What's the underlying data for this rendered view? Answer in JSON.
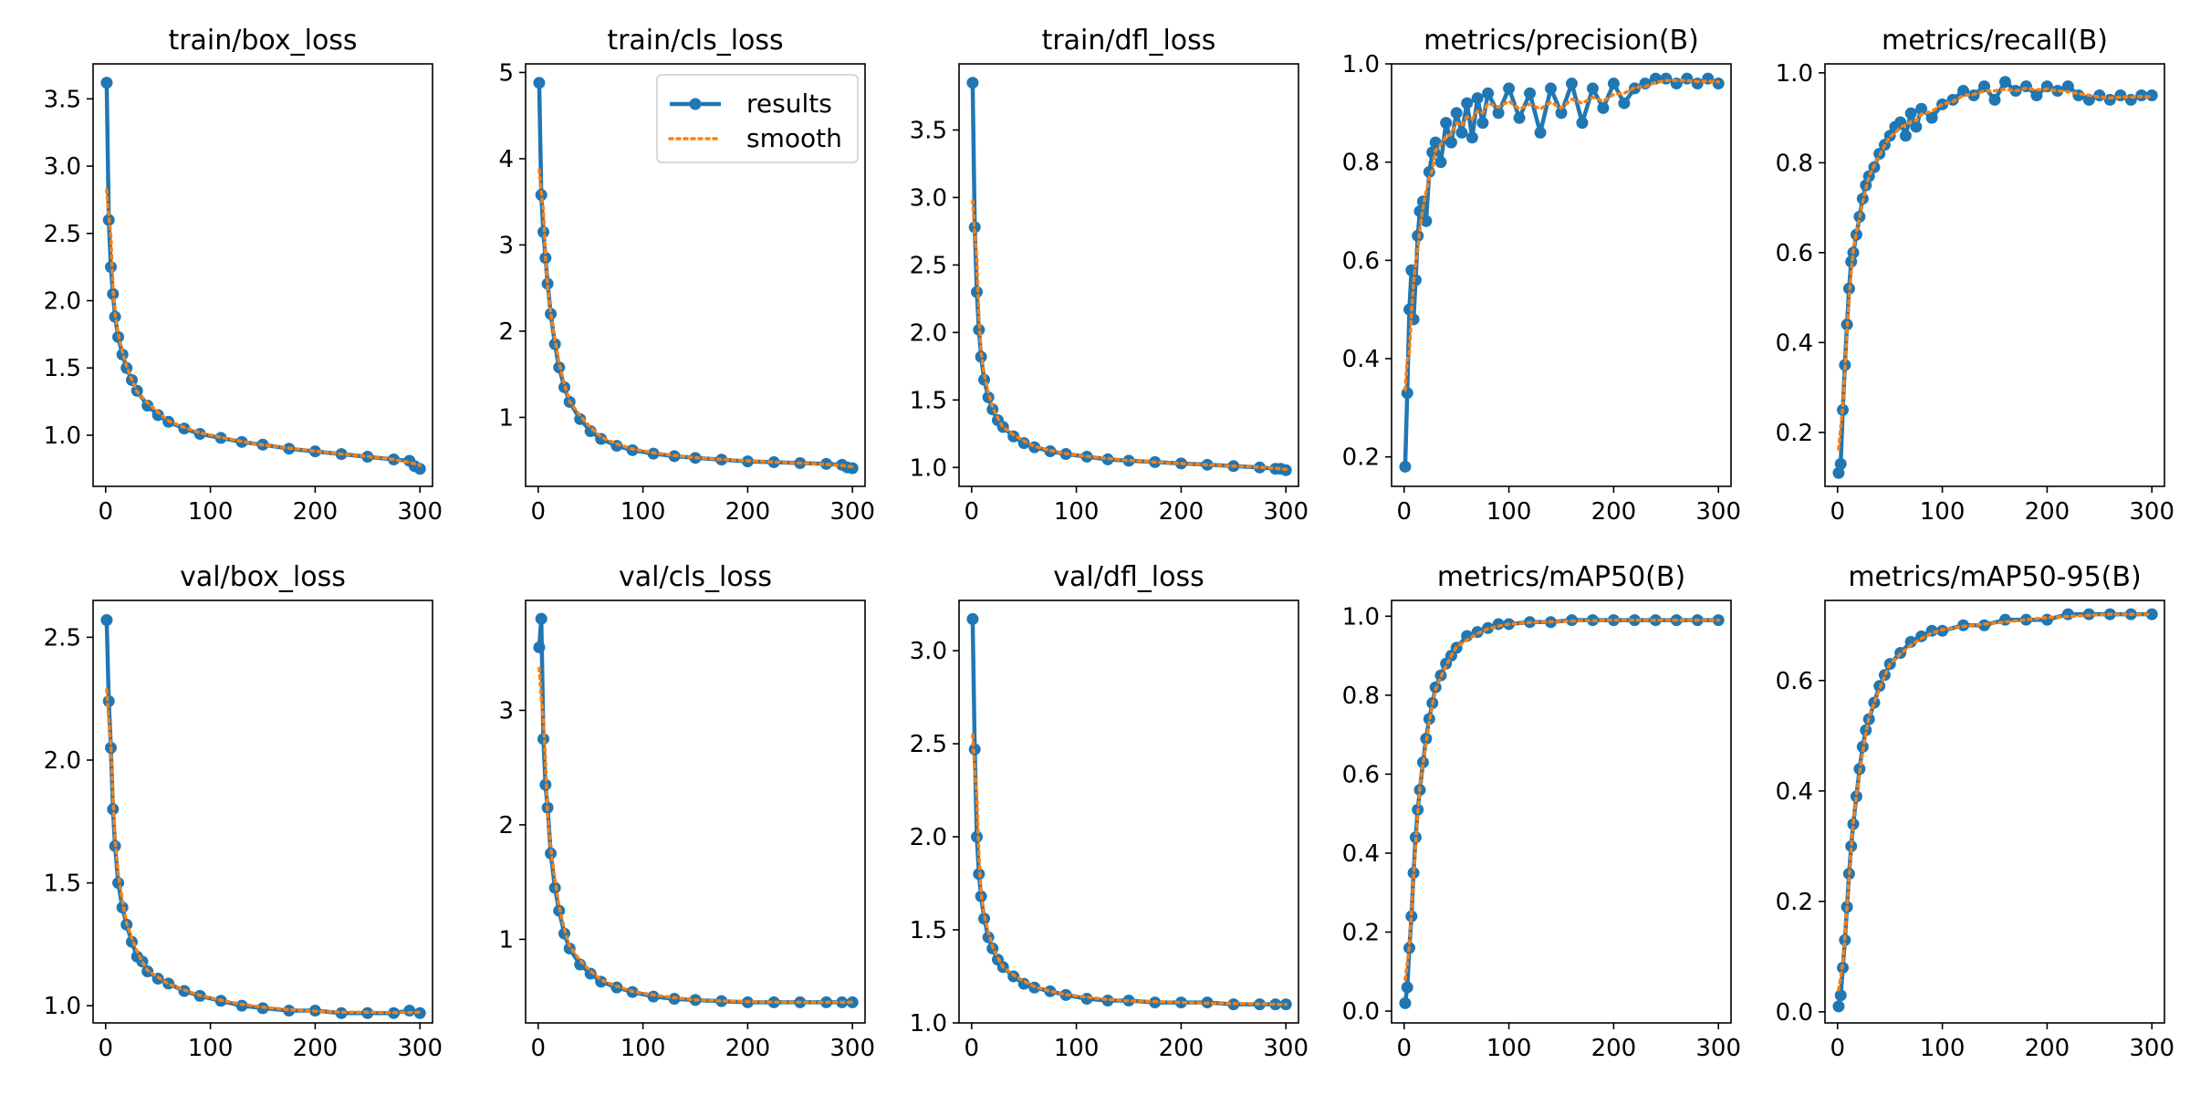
{
  "figure": {
    "legend": {
      "entries": [
        "results",
        "smooth"
      ],
      "placement": "upper-right",
      "panel_index": 1
    },
    "colors": {
      "results": "#1f77b4",
      "smooth": "#ff7f0e",
      "axes": "#000000",
      "background": "#ffffff"
    }
  },
  "chart_data": [
    {
      "type": "line",
      "title": "train/box_loss",
      "xlim": [
        -12,
        312
      ],
      "ylim": [
        0.62,
        3.76
      ],
      "xticks": [
        0,
        100,
        200,
        300
      ],
      "xtick_labels": [
        "0",
        "100",
        "200",
        "300"
      ],
      "yticks": [
        1.0,
        1.5,
        2.0,
        2.5,
        3.0,
        3.5
      ],
      "ytick_labels": [
        "1.0",
        "1.5",
        "2.0",
        "2.5",
        "3.0",
        "3.5"
      ],
      "series": [
        {
          "name": "results",
          "x": [
            1,
            3,
            5,
            7,
            9,
            12,
            16,
            20,
            25,
            30,
            40,
            50,
            60,
            75,
            90,
            110,
            130,
            150,
            175,
            200,
            225,
            250,
            275,
            290,
            295,
            300
          ],
          "y": [
            3.62,
            2.6,
            2.25,
            2.05,
            1.88,
            1.73,
            1.6,
            1.5,
            1.41,
            1.33,
            1.22,
            1.15,
            1.1,
            1.05,
            1.01,
            0.98,
            0.95,
            0.93,
            0.9,
            0.88,
            0.86,
            0.84,
            0.82,
            0.81,
            0.77,
            0.75
          ]
        }
      ]
    },
    {
      "type": "line",
      "title": "train/cls_loss",
      "xlim": [
        -12,
        312
      ],
      "ylim": [
        0.2,
        5.1
      ],
      "xticks": [
        0,
        100,
        200,
        300
      ],
      "xtick_labels": [
        "0",
        "100",
        "200",
        "300"
      ],
      "yticks": [
        1,
        2,
        3,
        4,
        5
      ],
      "ytick_labels": [
        "1",
        "2",
        "3",
        "4",
        "5"
      ],
      "series": [
        {
          "name": "results",
          "x": [
            1,
            3,
            5,
            7,
            9,
            12,
            16,
            20,
            25,
            30,
            40,
            50,
            60,
            75,
            90,
            110,
            130,
            150,
            175,
            200,
            225,
            250,
            275,
            290,
            295,
            300
          ],
          "y": [
            4.88,
            3.58,
            3.15,
            2.85,
            2.55,
            2.2,
            1.85,
            1.58,
            1.35,
            1.18,
            0.98,
            0.84,
            0.75,
            0.67,
            0.62,
            0.58,
            0.55,
            0.53,
            0.51,
            0.49,
            0.48,
            0.47,
            0.46,
            0.45,
            0.42,
            0.41
          ]
        }
      ]
    },
    {
      "type": "line",
      "title": "train/dfl_loss",
      "xlim": [
        -12,
        312
      ],
      "ylim": [
        0.86,
        3.99
      ],
      "xticks": [
        0,
        100,
        200,
        300
      ],
      "xtick_labels": [
        "0",
        "100",
        "200",
        "300"
      ],
      "yticks": [
        1.0,
        1.5,
        2.0,
        2.5,
        3.0,
        3.5
      ],
      "ytick_labels": [
        "1.0",
        "1.5",
        "2.0",
        "2.5",
        "3.0",
        "3.5"
      ],
      "series": [
        {
          "name": "results",
          "x": [
            1,
            3,
            5,
            7,
            9,
            12,
            16,
            20,
            25,
            30,
            40,
            50,
            60,
            75,
            90,
            110,
            130,
            150,
            175,
            200,
            225,
            250,
            275,
            290,
            295,
            300
          ],
          "y": [
            3.85,
            2.78,
            2.3,
            2.02,
            1.82,
            1.65,
            1.52,
            1.43,
            1.35,
            1.3,
            1.23,
            1.18,
            1.15,
            1.12,
            1.1,
            1.08,
            1.06,
            1.05,
            1.04,
            1.03,
            1.02,
            1.01,
            1.0,
            0.99,
            0.99,
            0.98
          ]
        }
      ]
    },
    {
      "type": "line",
      "title": "metrics/precision(B)",
      "xlim": [
        -12,
        312
      ],
      "ylim": [
        0.14,
        1.0
      ],
      "xticks": [
        0,
        100,
        200,
        300
      ],
      "xtick_labels": [
        "0",
        "100",
        "200",
        "300"
      ],
      "yticks": [
        0.2,
        0.4,
        0.6,
        0.8,
        1.0
      ],
      "ytick_labels": [
        "0.2",
        "0.4",
        "0.6",
        "0.8",
        "1.0"
      ],
      "series": [
        {
          "name": "results",
          "x": [
            1,
            3,
            5,
            7,
            9,
            11,
            13,
            15,
            18,
            21,
            24,
            27,
            30,
            35,
            40,
            45,
            50,
            55,
            60,
            65,
            70,
            75,
            80,
            90,
            100,
            110,
            120,
            130,
            140,
            150,
            160,
            170,
            180,
            190,
            200,
            210,
            220,
            230,
            240,
            250,
            260,
            270,
            280,
            290,
            300
          ],
          "y": [
            0.18,
            0.33,
            0.5,
            0.58,
            0.48,
            0.56,
            0.65,
            0.7,
            0.72,
            0.68,
            0.78,
            0.82,
            0.84,
            0.8,
            0.88,
            0.84,
            0.9,
            0.86,
            0.92,
            0.85,
            0.93,
            0.88,
            0.94,
            0.9,
            0.95,
            0.89,
            0.94,
            0.86,
            0.95,
            0.9,
            0.96,
            0.88,
            0.95,
            0.91,
            0.96,
            0.92,
            0.95,
            0.96,
            0.97,
            0.97,
            0.96,
            0.97,
            0.96,
            0.97,
            0.96
          ]
        }
      ]
    },
    {
      "type": "line",
      "title": "metrics/recall(B)",
      "xlim": [
        -12,
        312
      ],
      "ylim": [
        0.08,
        1.02
      ],
      "xticks": [
        0,
        100,
        200,
        300
      ],
      "xtick_labels": [
        "0",
        "100",
        "200",
        "300"
      ],
      "yticks": [
        0.2,
        0.4,
        0.6,
        0.8,
        1.0
      ],
      "ytick_labels": [
        "0.2",
        "0.4",
        "0.6",
        "0.8",
        "1.0"
      ],
      "series": [
        {
          "name": "results",
          "x": [
            1,
            3,
            5,
            7,
            9,
            11,
            13,
            15,
            18,
            21,
            24,
            27,
            30,
            35,
            40,
            45,
            50,
            55,
            60,
            65,
            70,
            75,
            80,
            90,
            100,
            110,
            120,
            130,
            140,
            150,
            160,
            170,
            180,
            190,
            200,
            210,
            220,
            230,
            240,
            250,
            260,
            270,
            280,
            290,
            300
          ],
          "y": [
            0.11,
            0.13,
            0.25,
            0.35,
            0.44,
            0.52,
            0.58,
            0.6,
            0.64,
            0.68,
            0.72,
            0.75,
            0.77,
            0.79,
            0.82,
            0.84,
            0.86,
            0.88,
            0.89,
            0.86,
            0.91,
            0.88,
            0.92,
            0.9,
            0.93,
            0.94,
            0.96,
            0.95,
            0.97,
            0.94,
            0.98,
            0.96,
            0.97,
            0.95,
            0.97,
            0.96,
            0.97,
            0.95,
            0.94,
            0.95,
            0.94,
            0.95,
            0.94,
            0.95,
            0.95
          ]
        }
      ]
    },
    {
      "type": "line",
      "title": "val/box_loss",
      "xlim": [
        -12,
        312
      ],
      "ylim": [
        0.93,
        2.65
      ],
      "xticks": [
        0,
        100,
        200,
        300
      ],
      "xtick_labels": [
        "0",
        "100",
        "200",
        "300"
      ],
      "yticks": [
        1.0,
        1.5,
        2.0,
        2.5
      ],
      "ytick_labels": [
        "1.0",
        "1.5",
        "2.0",
        "2.5"
      ],
      "series": [
        {
          "name": "results",
          "x": [
            1,
            3,
            5,
            7,
            9,
            12,
            16,
            20,
            25,
            30,
            35,
            40,
            50,
            60,
            75,
            90,
            110,
            130,
            150,
            175,
            200,
            225,
            250,
            275,
            290,
            300
          ],
          "y": [
            2.57,
            2.24,
            2.05,
            1.8,
            1.65,
            1.5,
            1.4,
            1.33,
            1.26,
            1.2,
            1.18,
            1.14,
            1.11,
            1.09,
            1.06,
            1.04,
            1.02,
            1.0,
            0.99,
            0.98,
            0.98,
            0.97,
            0.97,
            0.97,
            0.98,
            0.97
          ]
        }
      ]
    },
    {
      "type": "line",
      "title": "val/cls_loss",
      "xlim": [
        -12,
        312
      ],
      "ylim": [
        0.27,
        3.96
      ],
      "xticks": [
        0,
        100,
        200,
        300
      ],
      "xtick_labels": [
        "0",
        "100",
        "200",
        "300"
      ],
      "yticks": [
        1,
        2,
        3
      ],
      "ytick_labels": [
        "1",
        "2",
        "3"
      ],
      "series": [
        {
          "name": "results",
          "x": [
            1,
            3,
            5,
            7,
            9,
            12,
            16,
            20,
            25,
            30,
            40,
            50,
            60,
            75,
            90,
            110,
            130,
            150,
            175,
            200,
            225,
            250,
            275,
            290,
            300
          ],
          "y": [
            3.55,
            3.8,
            2.75,
            2.35,
            2.15,
            1.75,
            1.45,
            1.25,
            1.05,
            0.92,
            0.78,
            0.7,
            0.63,
            0.58,
            0.54,
            0.5,
            0.48,
            0.47,
            0.46,
            0.45,
            0.45,
            0.45,
            0.45,
            0.45,
            0.45
          ]
        }
      ]
    },
    {
      "type": "line",
      "title": "val/dfl_loss",
      "xlim": [
        -12,
        312
      ],
      "ylim": [
        1.0,
        3.27
      ],
      "xticks": [
        0,
        100,
        200,
        300
      ],
      "xtick_labels": [
        "0",
        "100",
        "200",
        "300"
      ],
      "yticks": [
        1.0,
        1.5,
        2.0,
        2.5,
        3.0
      ],
      "ytick_labels": [
        "1.0",
        "1.5",
        "2.0",
        "2.5",
        "3.0"
      ],
      "series": [
        {
          "name": "results",
          "x": [
            1,
            3,
            5,
            7,
            9,
            12,
            16,
            20,
            25,
            30,
            40,
            50,
            60,
            75,
            90,
            110,
            130,
            150,
            175,
            200,
            225,
            250,
            275,
            290,
            300
          ],
          "y": [
            3.17,
            2.47,
            2.0,
            1.8,
            1.68,
            1.56,
            1.46,
            1.4,
            1.34,
            1.3,
            1.25,
            1.21,
            1.19,
            1.17,
            1.15,
            1.13,
            1.12,
            1.12,
            1.11,
            1.11,
            1.11,
            1.1,
            1.1,
            1.1,
            1.1
          ]
        }
      ]
    },
    {
      "type": "line",
      "title": "metrics/mAP50(B)",
      "xlim": [
        -12,
        312
      ],
      "ylim": [
        -0.03,
        1.04
      ],
      "xticks": [
        0,
        100,
        200,
        300
      ],
      "xtick_labels": [
        "0",
        "100",
        "200",
        "300"
      ],
      "yticks": [
        0.0,
        0.2,
        0.4,
        0.6,
        0.8,
        1.0
      ],
      "ytick_labels": [
        "0.0",
        "0.2",
        "0.4",
        "0.6",
        "0.8",
        "1.0"
      ],
      "series": [
        {
          "name": "results",
          "x": [
            1,
            3,
            5,
            7,
            9,
            11,
            13,
            15,
            18,
            21,
            24,
            27,
            30,
            35,
            40,
            45,
            50,
            60,
            70,
            80,
            90,
            100,
            120,
            140,
            160,
            180,
            200,
            220,
            240,
            260,
            280,
            300
          ],
          "y": [
            0.02,
            0.06,
            0.16,
            0.24,
            0.35,
            0.44,
            0.51,
            0.56,
            0.63,
            0.69,
            0.74,
            0.78,
            0.82,
            0.85,
            0.88,
            0.9,
            0.92,
            0.95,
            0.96,
            0.97,
            0.98,
            0.98,
            0.985,
            0.985,
            0.99,
            0.99,
            0.99,
            0.99,
            0.99,
            0.99,
            0.99,
            0.99
          ]
        }
      ]
    },
    {
      "type": "line",
      "title": "metrics/mAP50-95(B)",
      "xlim": [
        -12,
        312
      ],
      "ylim": [
        -0.02,
        0.745
      ],
      "xticks": [
        0,
        100,
        200,
        300
      ],
      "xtick_labels": [
        "0",
        "100",
        "200",
        "300"
      ],
      "yticks": [
        0.0,
        0.2,
        0.4,
        0.6
      ],
      "ytick_labels": [
        "0.0",
        "0.2",
        "0.4",
        "0.6"
      ],
      "series": [
        {
          "name": "results",
          "x": [
            1,
            3,
            5,
            7,
            9,
            11,
            13,
            15,
            18,
            21,
            24,
            27,
            30,
            35,
            40,
            45,
            50,
            60,
            70,
            80,
            90,
            100,
            120,
            140,
            160,
            180,
            200,
            220,
            240,
            260,
            280,
            300
          ],
          "y": [
            0.01,
            0.03,
            0.08,
            0.13,
            0.19,
            0.25,
            0.3,
            0.34,
            0.39,
            0.44,
            0.48,
            0.51,
            0.53,
            0.56,
            0.59,
            0.61,
            0.63,
            0.65,
            0.67,
            0.68,
            0.69,
            0.69,
            0.7,
            0.7,
            0.71,
            0.71,
            0.71,
            0.72,
            0.72,
            0.72,
            0.72,
            0.72
          ]
        }
      ]
    }
  ]
}
